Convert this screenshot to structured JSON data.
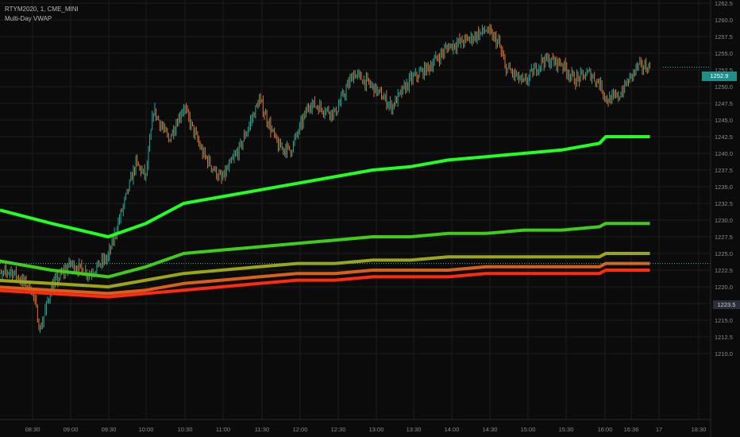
{
  "legend": {
    "title": "RTYM2020, 1, CME_MINI",
    "indicator": "Multi-Day VWAP"
  },
  "colors": {
    "background": "#0b0b0b",
    "grid": "#1c1c1c",
    "axis_text": "#8a8a8a",
    "candle_up": "#26a69a",
    "candle_down": "#e0702a",
    "vwap_top": "#22ff22",
    "vwap_2": "#3fcc1a",
    "vwap_3": "#9aa616",
    "vwap_4": "#d9601a",
    "vwap_5": "#ff2a10",
    "price_tag": "#1f8f8a",
    "dotted_line": "#3fb6b0"
  },
  "price_tag": {
    "label": "1252.9"
  },
  "crosshair_tag": {
    "label": "1223.5"
  },
  "chart_data": {
    "type": "line",
    "title": "RTYM2020, 1, CME_MINI",
    "indicator": "Multi-Day VWAP",
    "ylim": [
      1208.5,
      1263.8
    ],
    "y_ticks": [
      "1262.5",
      "1260.0",
      "1257.5",
      "1255.0",
      "1252.5",
      "1250.0",
      "1247.5",
      "1245.0",
      "1242.5",
      "1240.0",
      "1237.5",
      "1235.0",
      "1232.5",
      "1230.0",
      "1227.5",
      "1225.0",
      "1222.5",
      "1220.0",
      "1217.5",
      "1215.0",
      "1212.5",
      "1210.0"
    ],
    "x_ticks": [
      "08:30",
      "09:00",
      "09:30",
      "10:00",
      "10:30",
      "11:00",
      "11:30",
      "12:00",
      "12:30",
      "13:00",
      "13:30",
      "14:00",
      "14:30",
      "15:00",
      "15:30",
      "16:00",
      "16:36",
      "17",
      "18:30"
    ],
    "grid": true,
    "price_series": {
      "name": "RTYM2020",
      "points": [
        [
          "08:00",
          1221.0
        ],
        [
          "08:12",
          1222.5
        ],
        [
          "08:30",
          1219.5
        ],
        [
          "08:36",
          1213.5
        ],
        [
          "08:45",
          1220.0
        ],
        [
          "09:00",
          1223.5
        ],
        [
          "09:15",
          1222.0
        ],
        [
          "09:30",
          1224.5
        ],
        [
          "09:45",
          1234.0
        ],
        [
          "09:52",
          1238.5
        ],
        [
          "10:00",
          1236.5
        ],
        [
          "10:06",
          1246.5
        ],
        [
          "10:18",
          1242.0
        ],
        [
          "10:30",
          1247.0
        ],
        [
          "10:45",
          1240.0
        ],
        [
          "11:00",
          1236.0
        ],
        [
          "11:15",
          1241.0
        ],
        [
          "11:30",
          1248.0
        ],
        [
          "11:45",
          1241.0
        ],
        [
          "11:55",
          1240.5
        ],
        [
          "12:10",
          1247.5
        ],
        [
          "12:30",
          1246.0
        ],
        [
          "12:45",
          1252.0
        ],
        [
          "13:00",
          1250.0
        ],
        [
          "13:15",
          1247.0
        ],
        [
          "13:30",
          1251.0
        ],
        [
          "13:45",
          1253.0
        ],
        [
          "14:00",
          1256.0
        ],
        [
          "14:15",
          1257.0
        ],
        [
          "14:30",
          1258.5
        ],
        [
          "14:40",
          1256.5
        ],
        [
          "14:45",
          1253.0
        ],
        [
          "15:00",
          1250.5
        ],
        [
          "15:15",
          1254.0
        ],
        [
          "15:30",
          1253.5
        ],
        [
          "15:40",
          1251.0
        ],
        [
          "15:52",
          1252.0
        ],
        [
          "16:00",
          1250.5
        ],
        [
          "16:06",
          1248.0
        ],
        [
          "16:15",
          1248.5
        ],
        [
          "16:30",
          1253.0
        ],
        [
          "16:40",
          1252.9
        ]
      ]
    },
    "series": [
      {
        "points": [
          [
            "08:00",
            1231.5
          ],
          [
            "08:45",
            1229.5
          ],
          [
            "09:30",
            1227.5
          ],
          [
            "10:00",
            1229.5
          ],
          [
            "10:30",
            1232.5
          ],
          [
            "11:00",
            1233.5
          ],
          [
            "11:30",
            1234.5
          ],
          [
            "12:00",
            1235.5
          ],
          [
            "12:30",
            1236.5
          ],
          [
            "13:00",
            1237.5
          ],
          [
            "13:30",
            1238.0
          ],
          [
            "14:00",
            1239.0
          ],
          [
            "14:30",
            1239.5
          ],
          [
            "15:00",
            1240.0
          ],
          [
            "15:30",
            1240.5
          ],
          [
            "16:00",
            1241.5
          ],
          [
            "16:05",
            1242.5
          ],
          [
            "16:40",
            1242.5
          ]
        ]
      },
      {
        "points": [
          [
            "08:00",
            1224.0
          ],
          [
            "08:45",
            1222.5
          ],
          [
            "09:30",
            1221.5
          ],
          [
            "10:00",
            1223.0
          ],
          [
            "10:30",
            1225.0
          ],
          [
            "11:00",
            1225.5
          ],
          [
            "11:30",
            1226.0
          ],
          [
            "12:00",
            1226.5
          ],
          [
            "12:30",
            1227.0
          ],
          [
            "13:00",
            1227.5
          ],
          [
            "13:30",
            1227.5
          ],
          [
            "14:00",
            1228.0
          ],
          [
            "14:30",
            1228.0
          ],
          [
            "15:00",
            1228.5
          ],
          [
            "15:30",
            1228.5
          ],
          [
            "16:00",
            1229.0
          ],
          [
            "16:05",
            1229.5
          ],
          [
            "16:40",
            1229.5
          ]
        ]
      },
      {
        "points": [
          [
            "08:00",
            1221.0
          ],
          [
            "08:45",
            1220.5
          ],
          [
            "09:30",
            1220.0
          ],
          [
            "10:00",
            1221.0
          ],
          [
            "10:30",
            1222.0
          ],
          [
            "11:00",
            1222.5
          ],
          [
            "11:30",
            1223.0
          ],
          [
            "12:00",
            1223.5
          ],
          [
            "12:30",
            1223.5
          ],
          [
            "13:00",
            1224.0
          ],
          [
            "13:30",
            1224.0
          ],
          [
            "14:00",
            1224.5
          ],
          [
            "14:30",
            1224.5
          ],
          [
            "15:00",
            1224.5
          ],
          [
            "15:30",
            1224.5
          ],
          [
            "16:00",
            1224.5
          ],
          [
            "16:05",
            1225.0
          ],
          [
            "16:40",
            1225.0
          ]
        ]
      },
      {
        "points": [
          [
            "08:00",
            1220.0
          ],
          [
            "08:45",
            1219.5
          ],
          [
            "09:30",
            1219.0
          ],
          [
            "10:00",
            1219.5
          ],
          [
            "10:30",
            1220.5
          ],
          [
            "11:00",
            1221.0
          ],
          [
            "11:30",
            1221.5
          ],
          [
            "12:00",
            1222.0
          ],
          [
            "12:30",
            1222.0
          ],
          [
            "13:00",
            1222.5
          ],
          [
            "13:30",
            1222.5
          ],
          [
            "14:00",
            1222.5
          ],
          [
            "14:30",
            1223.0
          ],
          [
            "15:00",
            1223.0
          ],
          [
            "15:30",
            1223.0
          ],
          [
            "16:00",
            1223.0
          ],
          [
            "16:05",
            1223.5
          ],
          [
            "16:40",
            1223.5
          ]
        ]
      },
      {
        "points": [
          [
            "08:00",
            1219.5
          ],
          [
            "08:45",
            1219.0
          ],
          [
            "09:30",
            1218.5
          ],
          [
            "10:00",
            1219.0
          ],
          [
            "10:30",
            1219.5
          ],
          [
            "11:00",
            1220.0
          ],
          [
            "11:30",
            1220.5
          ],
          [
            "12:00",
            1221.0
          ],
          [
            "12:30",
            1221.0
          ],
          [
            "13:00",
            1221.5
          ],
          [
            "13:30",
            1221.5
          ],
          [
            "14:00",
            1221.5
          ],
          [
            "14:30",
            1222.0
          ],
          [
            "15:00",
            1222.0
          ],
          [
            "15:30",
            1222.0
          ],
          [
            "16:00",
            1222.0
          ],
          [
            "16:05",
            1222.5
          ],
          [
            "16:40",
            1222.5
          ]
        ]
      }
    ],
    "last_price": 1252.9,
    "crosshair_price": 1223.5
  }
}
